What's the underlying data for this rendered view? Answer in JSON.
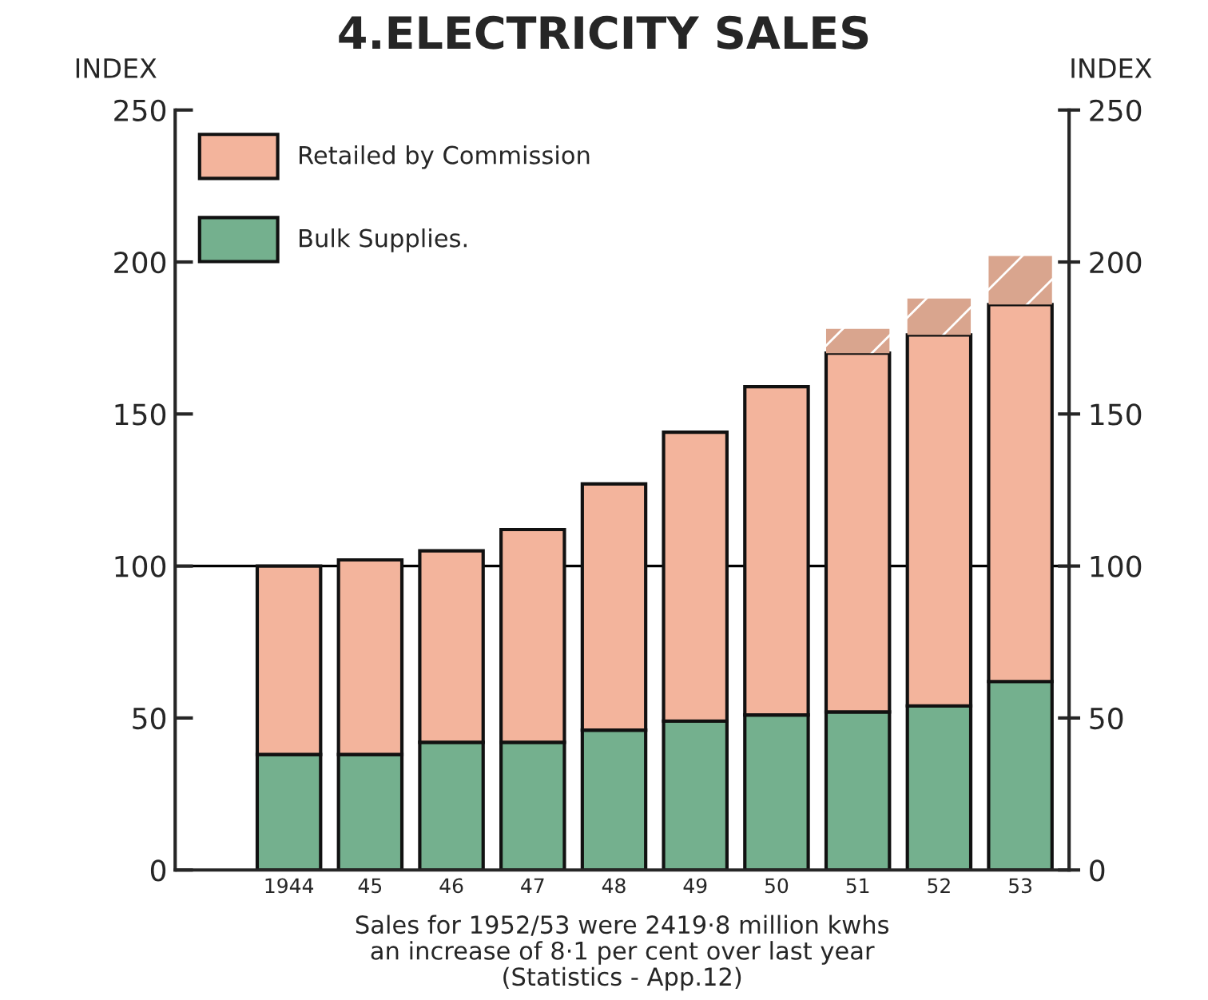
{
  "chart_data": {
    "type": "bar",
    "title": "4.ELECTRICITY SALES",
    "ylabel": "INDEX",
    "y2label": "INDEX",
    "categories": [
      "1944",
      "45",
      "46",
      "47",
      "48",
      "49",
      "50",
      "51",
      "52",
      "53"
    ],
    "stacked": true,
    "series": [
      {
        "name": "Bulk Supplies.",
        "color": "#74b08e",
        "values": [
          38,
          38,
          42,
          42,
          46,
          49,
          51,
          52,
          54,
          62
        ]
      },
      {
        "name": "Retailed by Commission",
        "color": "#f3b49c",
        "values": [
          62,
          64,
          63,
          70,
          81,
          95,
          108,
          118,
          122,
          124
        ]
      },
      {
        "color": "#d9a58e",
        "values": [
          null,
          null,
          null,
          null,
          null,
          null,
          null,
          8,
          12,
          16
        ]
      }
    ],
    "ylim": [
      0,
      250
    ],
    "yticks": [
      0,
      50,
      100,
      150,
      200,
      250
    ],
    "y2lim": [
      0,
      250
    ],
    "y2ticks": [
      0,
      50,
      100,
      150,
      200,
      250
    ],
    "ref_lines": [
      {
        "axis": "y",
        "value": 100,
        "color": "#000000",
        "line_style": "solid"
      }
    ],
    "legend": "top left",
    "grid": false,
    "annotations": [
      "Sales for 1952/53 were 2419·8 million kwhs",
      "an increase of 8·1 per cent over last year",
      "(Statistics - App.12)"
    ]
  }
}
